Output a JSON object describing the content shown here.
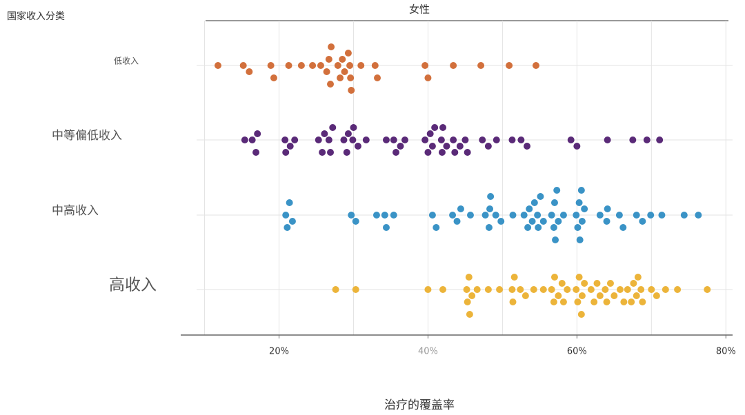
{
  "chart_data": {
    "type": "swarm",
    "title": "女性",
    "ylabel": "国家收入分类",
    "xlabel": "治疗的覆盖率",
    "xlim": [
      6.8,
      80.9
    ],
    "xticks": [
      {
        "value": 20,
        "label": "20%"
      },
      {
        "value": 40,
        "label": "40%"
      },
      {
        "value": 60,
        "label": "60%"
      },
      {
        "value": 80,
        "label": "80%"
      }
    ],
    "minor_xticks": [
      10,
      30,
      50,
      70
    ],
    "grid": true,
    "series": [
      {
        "name": "低收入",
        "color": "#d2703c",
        "values": [
          11.8,
          15.2,
          16.0,
          18.9,
          19.3,
          21.3,
          23.0,
          24.5,
          25.6,
          26.4,
          26.7,
          26.9,
          27.0,
          27.9,
          28.2,
          28.5,
          28.8,
          29.3,
          29.5,
          29.6,
          29.7,
          31.0,
          32.9,
          33.2,
          39.6,
          40.0,
          43.4,
          47.1,
          50.9,
          54.5
        ]
      },
      {
        "name": "中等偏低收入",
        "color": "#5a2a78",
        "values": [
          15.4,
          16.4,
          16.9,
          17.1,
          20.8,
          20.9,
          21.5,
          22.1,
          25.3,
          25.8,
          26.1,
          26.7,
          26.9,
          27.2,
          28.7,
          29.1,
          29.3,
          29.9,
          30.0,
          30.6,
          31.7,
          34.4,
          35.4,
          35.7,
          36.3,
          36.9,
          39.6,
          40.0,
          40.3,
          40.6,
          40.9,
          41.8,
          41.9,
          42.0,
          42.5,
          43.4,
          43.6,
          44.3,
          45.0,
          45.3,
          47.3,
          48.1,
          49.2,
          51.3,
          52.5,
          53.3,
          59.2,
          60.0,
          64.1,
          67.5,
          69.4,
          71.1
        ]
      },
      {
        "name": "中高收入",
        "color": "#3a93c6",
        "values": [
          20.9,
          21.1,
          21.4,
          21.8,
          29.7,
          30.3,
          33.1,
          34.2,
          34.4,
          35.4,
          40.6,
          41.1,
          43.3,
          43.9,
          44.4,
          45.7,
          47.7,
          48.2,
          48.3,
          48.4,
          49.1,
          49.8,
          51.4,
          52.9,
          53.4,
          53.6,
          54.0,
          54.3,
          54.7,
          54.8,
          55.1,
          55.5,
          56.6,
          56.9,
          57.0,
          57.1,
          57.3,
          57.5,
          58.2,
          59.9,
          60.1,
          60.3,
          60.4,
          60.6,
          60.7,
          61.0,
          63.1,
          64.0,
          64.1,
          65.7,
          66.2,
          68.0,
          68.8,
          69.9,
          71.4,
          74.4,
          76.3
        ]
      },
      {
        "name": "高收入",
        "color": "#ecb43a",
        "values": [
          27.6,
          30.3,
          40.0,
          42.0,
          45.2,
          45.3,
          45.5,
          45.6,
          45.9,
          46.6,
          48.1,
          49.6,
          51.3,
          51.4,
          51.6,
          52.4,
          53.1,
          54.2,
          55.5,
          56.6,
          56.9,
          57.0,
          57.5,
          58.0,
          58.2,
          58.7,
          59.9,
          60.1,
          60.3,
          60.6,
          60.7,
          61.0,
          61.9,
          62.3,
          62.7,
          63.1,
          63.8,
          64.0,
          64.5,
          65.0,
          65.8,
          66.3,
          66.8,
          67.3,
          67.6,
          68.0,
          68.2,
          68.6,
          68.8,
          70.0,
          70.7,
          71.9,
          73.5,
          77.5
        ]
      }
    ]
  }
}
